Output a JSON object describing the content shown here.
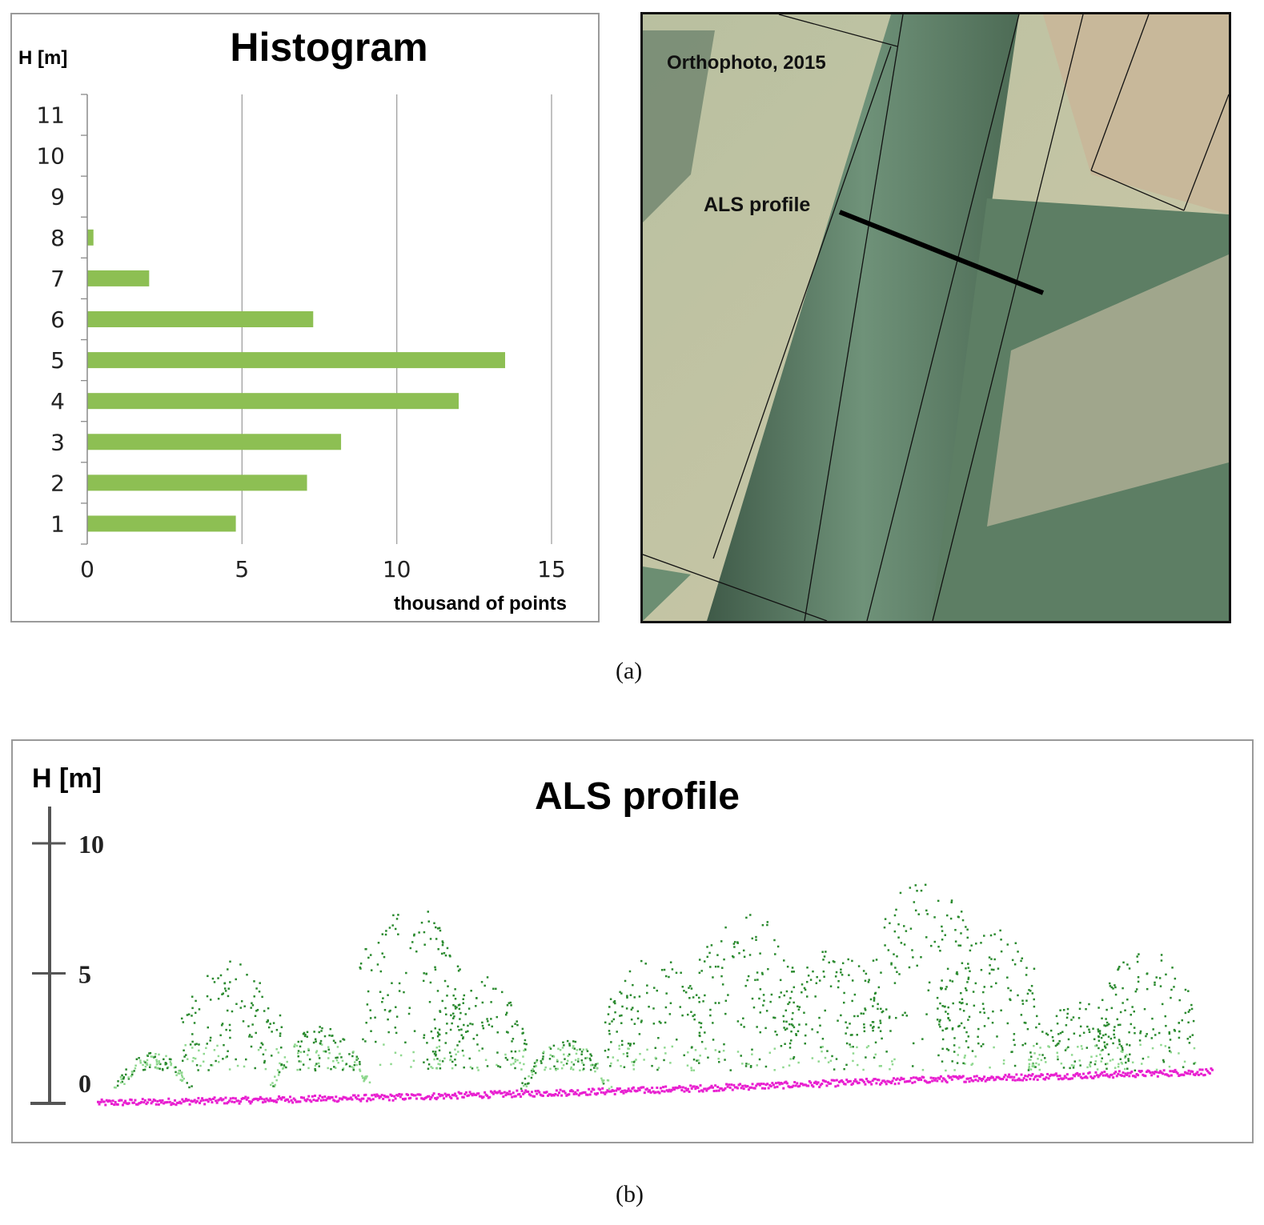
{
  "figure": {
    "caption_a": "(a)",
    "caption_b": "(b)"
  },
  "chart_data": [
    {
      "type": "bar",
      "orientation": "horizontal",
      "title": "Histogram",
      "ylabel": "H [m]",
      "xlabel": "thousand of points",
      "categories": [
        "1",
        "2",
        "3",
        "4",
        "5",
        "6",
        "7",
        "8",
        "9",
        "10",
        "11"
      ],
      "values": [
        4.8,
        7.1,
        8.2,
        12.0,
        13.5,
        7.3,
        2.0,
        0.2,
        0,
        0,
        0
      ],
      "xticks": [
        "0",
        "5",
        "10",
        "15"
      ],
      "xlim": [
        0,
        15
      ],
      "grid": "vertical",
      "legend": "none",
      "bar_color": "#8dbf53"
    },
    {
      "type": "scatter",
      "title": "ALS profile",
      "ylabel": "H [m]",
      "yticks": [
        "0",
        "5",
        "10"
      ],
      "ylim": [
        0,
        12
      ],
      "series": [
        {
          "color": "#2a8a2e",
          "x": [
            0.05,
            0.12,
            0.2,
            0.28,
            0.34,
            0.42,
            0.5,
            0.58,
            0.66,
            0.74,
            0.8,
            0.88,
            0.94
          ],
          "y": [
            2.0,
            5.5,
            3.0,
            7.7,
            5.0,
            2.5,
            5.8,
            7.5,
            6.0,
            8.8,
            7.0,
            4.0,
            6.0
          ]
        },
        {
          "color": "#e81fd0",
          "x": [
            0.0,
            0.25,
            0.5,
            0.75,
            1.0
          ],
          "y": [
            0.0,
            0.2,
            0.5,
            0.9,
            1.2
          ]
        }
      ]
    }
  ],
  "orthophoto": {
    "label": "Orthophoto, 2015",
    "profile_label": "ALS profile"
  }
}
